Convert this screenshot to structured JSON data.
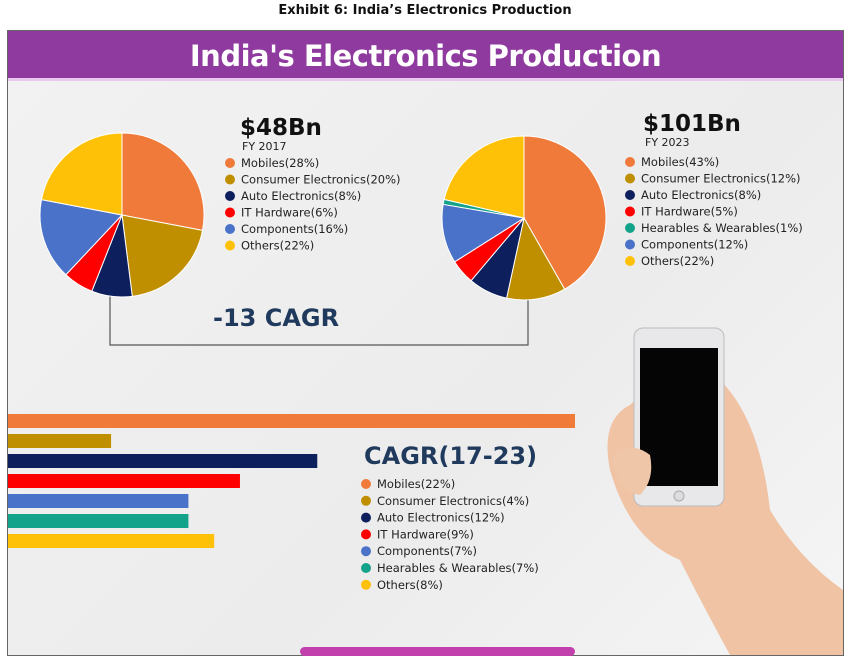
{
  "exhibit_title": "Exhibit 6: India’s Electronics Production",
  "header": "India's Electronics Production",
  "colors": {
    "Mobiles": "#f07a3a",
    "Consumer Electronics": "#bf8f00",
    "Auto Electronics": "#0d1f5c",
    "IT Hardware": "#ff0000",
    "Components": "#4a72c8",
    "Hearables & Wearables": "#13a38a",
    "Others": "#ffc107",
    "header": "#8e3a9e",
    "cagr_text": "#1f3a5c"
  },
  "chart_data": [
    {
      "type": "pie",
      "title": "$48Bn",
      "subtitle": "FY 2017",
      "slices": [
        {
          "label": "Mobiles(28%)",
          "name": "Mobiles",
          "value": 28
        },
        {
          "label": "Consumer Electronics(20%)",
          "name": "Consumer Electronics",
          "value": 20
        },
        {
          "label": "Auto Electronics(8%)",
          "name": "Auto Electronics",
          "value": 8
        },
        {
          "label": "IT Hardware(6%)",
          "name": "IT Hardware",
          "value": 6
        },
        {
          "label": "Components(16%)",
          "name": "Components",
          "value": 16
        },
        {
          "label": "Others(22%)",
          "name": "Others",
          "value": 22
        }
      ]
    },
    {
      "type": "pie",
      "title": "$101Bn",
      "subtitle": "FY 2023",
      "slices": [
        {
          "label": "Mobiles(43%)",
          "name": "Mobiles",
          "value": 43
        },
        {
          "label": "Consumer Electronics(12%)",
          "name": "Consumer Electronics",
          "value": 12
        },
        {
          "label": "Auto Electronics(8%)",
          "name": "Auto Electronics",
          "value": 8
        },
        {
          "label": "IT Hardware(5%)",
          "name": "IT Hardware",
          "value": 5
        },
        {
          "label": "Components(12%)",
          "name": "Components",
          "value": 12
        },
        {
          "label": "Hearables & Wearables(1%)",
          "name": "Hearables & Wearables",
          "value": 1
        },
        {
          "label": "Others(22%)",
          "name": "Others",
          "value": 22
        }
      ]
    },
    {
      "type": "bar",
      "orientation": "horizontal",
      "title": "CAGR(17-23)",
      "bars": [
        {
          "label": "Mobiles(22%)",
          "name": "Mobiles",
          "value": 22
        },
        {
          "label": "Consumer Electronics(4%)",
          "name": "Consumer Electronics",
          "value": 4
        },
        {
          "label": "Auto Electronics(12%)",
          "name": "Auto Electronics",
          "value": 12
        },
        {
          "label": "IT Hardware(9%)",
          "name": "IT Hardware",
          "value": 9
        },
        {
          "label": "Components(7%)",
          "name": "Components",
          "value": 7
        },
        {
          "label": "Hearables & Wearables(7%)",
          "name": "Hearables & Wearables",
          "value": 7
        },
        {
          "label": "Others(8%)",
          "name": "Others",
          "value": 8
        }
      ]
    }
  ],
  "annotation": "-13 CAGR"
}
